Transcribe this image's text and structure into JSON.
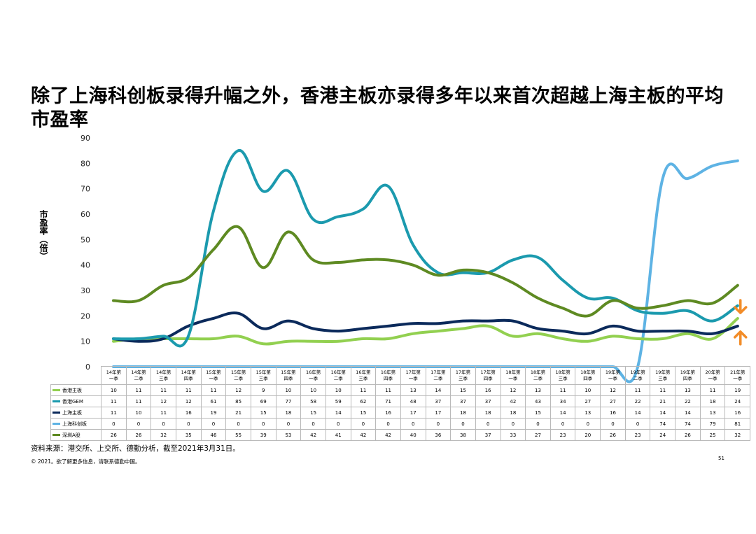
{
  "title": "除了上海科创板录得升幅之外，香港主板亦录得多年以来首次超越上海主板的平均市盈率",
  "footer": {
    "source": "资料来源：港交所、上交所、德勤分析，截至2021年3月31日。",
    "copyright": "© 2021。欲了解更多信息，请联系德勤中国。",
    "page": "51"
  },
  "chart_data": {
    "type": "line",
    "ylabel": "市盈率（倍）",
    "ylim": [
      0,
      90
    ],
    "yticks": [
      0,
      10,
      20,
      30,
      40,
      50,
      60,
      70,
      80,
      90
    ],
    "categories": [
      [
        "14年第",
        "一季"
      ],
      [
        "14年第",
        "二季"
      ],
      [
        "14年第",
        "三季"
      ],
      [
        "14年第",
        "四季"
      ],
      [
        "15年第",
        "一季"
      ],
      [
        "15年第",
        "二季"
      ],
      [
        "15年第",
        "三季"
      ],
      [
        "15年第",
        "四季"
      ],
      [
        "16年第",
        "一季"
      ],
      [
        "16年第",
        "二季"
      ],
      [
        "16年第",
        "三季"
      ],
      [
        "16年第",
        "四季"
      ],
      [
        "17年第",
        "一季"
      ],
      [
        "17年第",
        "二季"
      ],
      [
        "17年第",
        "三季"
      ],
      [
        "17年第",
        "四季"
      ],
      [
        "18年第",
        "一季"
      ],
      [
        "18年第",
        "二季"
      ],
      [
        "18年第",
        "三季"
      ],
      [
        "18年第",
        "四季"
      ],
      [
        "19年第",
        "一季"
      ],
      [
        "19年第",
        "二季"
      ],
      [
        "19年第",
        "三季"
      ],
      [
        "19年第",
        "四季"
      ],
      [
        "20年第",
        "一季"
      ],
      [
        "21年第",
        "一季"
      ]
    ],
    "series": [
      {
        "name": "香港主板",
        "color": "#92d050",
        "values": [
          10,
          11,
          11,
          11,
          11,
          12,
          9,
          10,
          10,
          10,
          11,
          11,
          13,
          14,
          15,
          16,
          12,
          13,
          11,
          10,
          12,
          11,
          11,
          13,
          11,
          19
        ]
      },
      {
        "name": "香港GEM",
        "color": "#1b9aae",
        "values": [
          11,
          11,
          12,
          12,
          61,
          85,
          69,
          77,
          58,
          59,
          62,
          71,
          48,
          37,
          37,
          37,
          42,
          43,
          34,
          27,
          27,
          22,
          21,
          22,
          18,
          24
        ]
      },
      {
        "name": "上海主板",
        "color": "#0b2a5b",
        "values": [
          11,
          10,
          11,
          16,
          19,
          21,
          15,
          18,
          15,
          14,
          15,
          16,
          17,
          17,
          18,
          18,
          18,
          15,
          14,
          13,
          16,
          14,
          14,
          14,
          13,
          16
        ]
      },
      {
        "name": "上海科创板",
        "color": "#5eb3e4",
        "values": [
          0,
          0,
          0,
          0,
          0,
          0,
          0,
          0,
          0,
          0,
          0,
          0,
          0,
          0,
          0,
          0,
          0,
          0,
          0,
          0,
          0,
          0,
          74,
          74,
          79,
          81
        ]
      },
      {
        "name": "深圳A股",
        "color": "#5e8a22",
        "values": [
          26,
          26,
          32,
          35,
          46,
          55,
          39,
          53,
          42,
          41,
          42,
          42,
          40,
          36,
          38,
          37,
          33,
          27,
          23,
          20,
          26,
          23,
          24,
          26,
          25,
          32
        ]
      }
    ],
    "annotations": [
      {
        "type": "arrow-down",
        "color": "#f28c28",
        "target_series": "香港主板"
      },
      {
        "type": "arrow-up",
        "color": "#f28c28",
        "target_series": "上海主板"
      }
    ]
  }
}
